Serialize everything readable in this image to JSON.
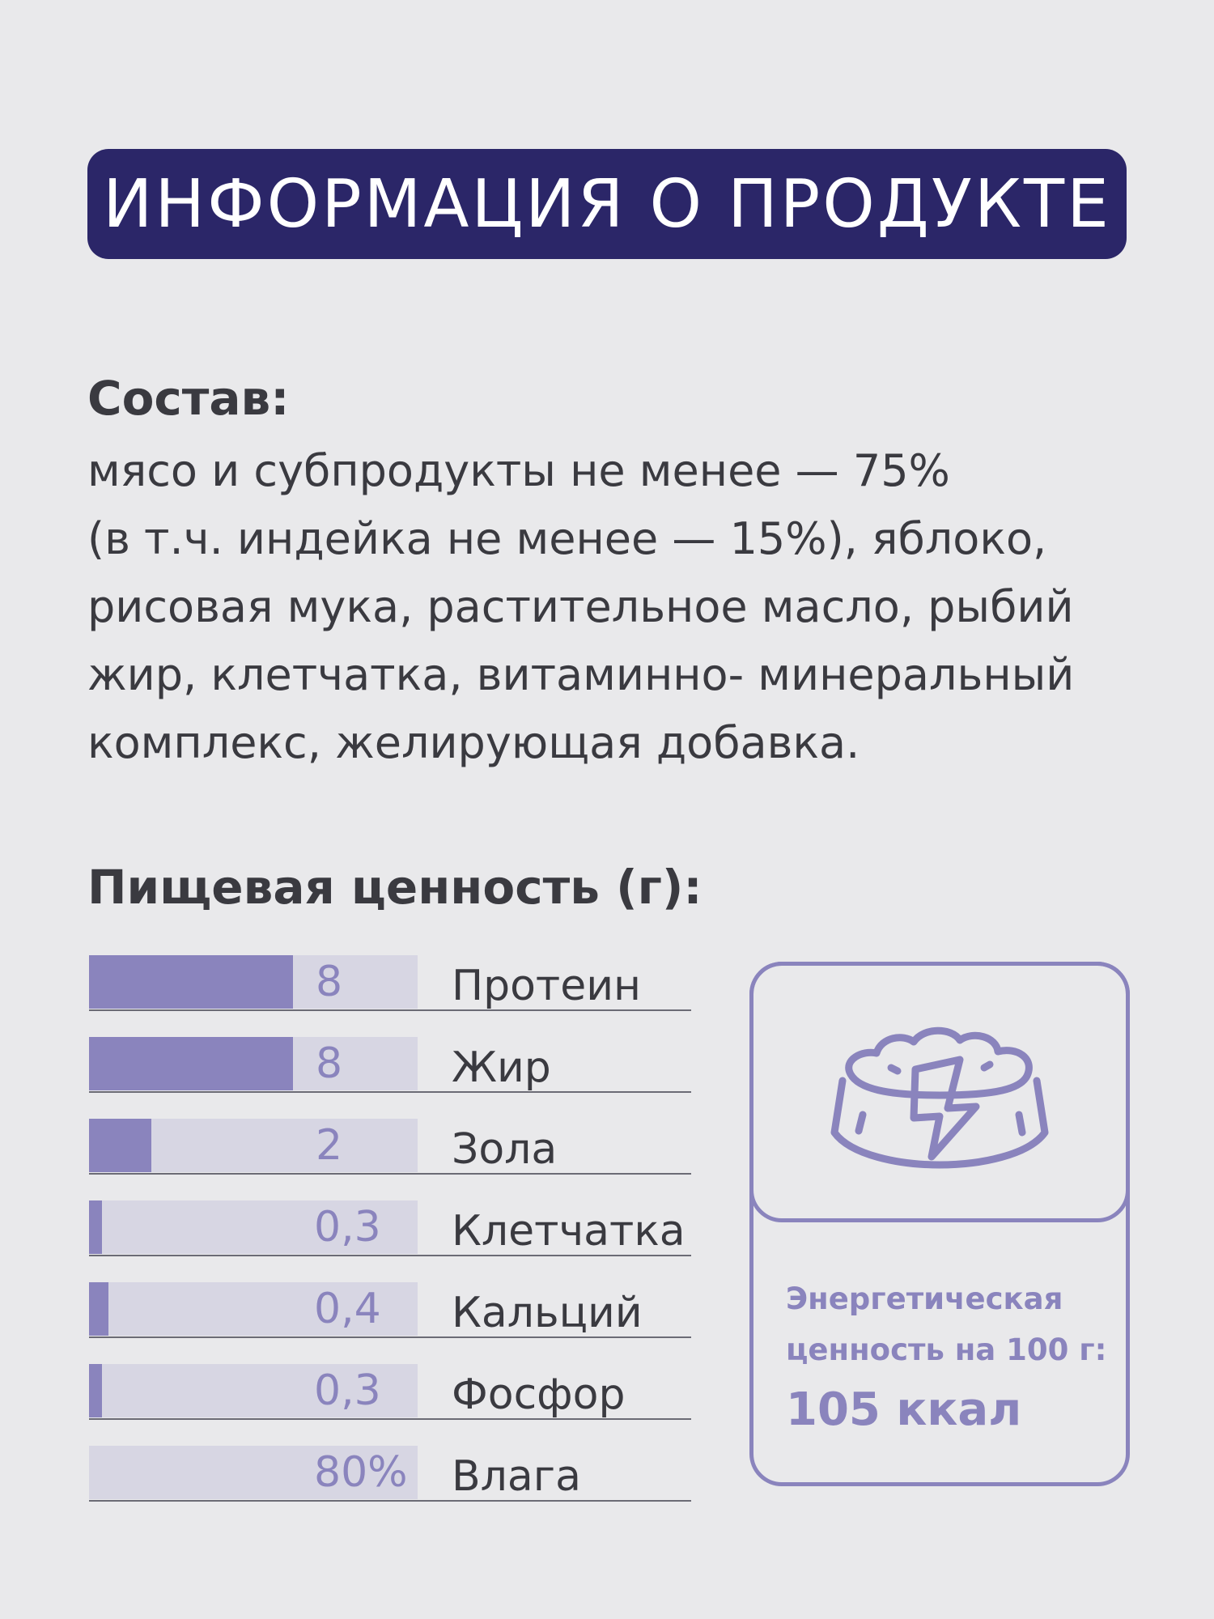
{
  "header": {
    "title": "ИНФОРМАЦИЯ О ПРОДУКТЕ"
  },
  "composition": {
    "heading": "Состав:",
    "lines": [
      "мясо и субпродукты не менее — 75%",
      "(в т.ч. индейка не менее — 15%), яблоко,",
      "рисовая мука, растительное масло, рыбий",
      "жир, клетчатка, витаминно- минеральный",
      "комплекс, желирующая добавка."
    ]
  },
  "nutrition": {
    "heading": "Пищевая ценность (г):",
    "items": [
      {
        "label": "Протеин",
        "value": "8",
        "fill": 0.62
      },
      {
        "label": "Жир",
        "value": "8",
        "fill": 0.62
      },
      {
        "label": "Зола",
        "value": "2",
        "fill": 0.19
      },
      {
        "label": "Клетчатка",
        "value": "0,3",
        "fill": 0.04
      },
      {
        "label": "Кальций",
        "value": "0,4",
        "fill": 0.06
      },
      {
        "label": "Фосфор",
        "value": "0,3",
        "fill": 0.04
      },
      {
        "label": "Влага",
        "value": "80%",
        "fill": 0.0
      }
    ]
  },
  "energy": {
    "label": "Энергетическая ценность на 100 г:",
    "value": "105 ккал",
    "icon": "food-bowl-icon"
  },
  "colors": {
    "background": "#e9e9eb",
    "banner": "#2b2668",
    "accent": "#8a84bd",
    "track": "#d7d6e3",
    "text": "#3a3a40"
  }
}
